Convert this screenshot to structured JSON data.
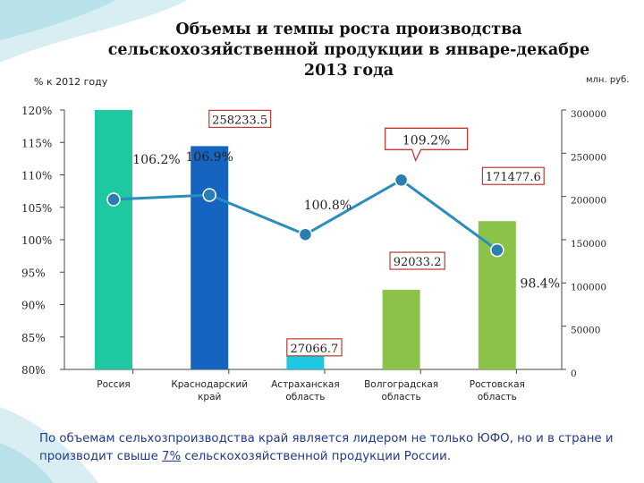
{
  "chart_data": {
    "type": "bar",
    "title": "Объемы и темпы роста производства сельскохозяйственной продукции в январе-декабре 2013 года",
    "title_lines": [
      "Объемы и темпы роста производства",
      "сельскохозяйственной продукции в январе-декабре",
      "2013 года"
    ],
    "left_axis_unit": "% к 2012 году",
    "right_axis_unit": "млн. руб.",
    "categories": [
      "Россия",
      "Краснодарский край",
      "Астраханская область",
      "Волгоградская область",
      "Ростовская область"
    ],
    "bar_series": {
      "values": [
        null,
        258233.5,
        27066.7,
        92033.2,
        171477.6
      ],
      "labels": [
        "",
        "258233.5",
        "27066.7",
        "92033.2",
        "171477.6"
      ],
      "colors": [
        "#1ec8a0",
        "#1565c0",
        "#1ec8e0",
        "#8bc34a",
        "#8bc34a"
      ]
    },
    "line_series": {
      "values": [
        106.2,
        106.9,
        100.8,
        109.2,
        98.4
      ],
      "labels": [
        "106.2%",
        "106.9%",
        "100.8%",
        "109.2%",
        "98.4%"
      ],
      "color": "#2b8cbe"
    },
    "left_axis": {
      "ylim": [
        80,
        120
      ],
      "ticks": [
        "80%",
        "85%",
        "90%",
        "95%",
        "100%",
        "105%",
        "110%",
        "115%",
        "120%"
      ]
    },
    "right_axis": {
      "ylim": [
        0,
        300000
      ],
      "ticks": [
        "0",
        "50000",
        "100000",
        "150000",
        "200000",
        "250000",
        "300000"
      ]
    },
    "callout": "109.2%"
  },
  "footnote": {
    "before": "По объемам сельхозпроизводства край является лидером не только ЮФО, но и в стране и производит свыше ",
    "highlight": "7%",
    "after": " сельскохозяйственной продукции России."
  }
}
